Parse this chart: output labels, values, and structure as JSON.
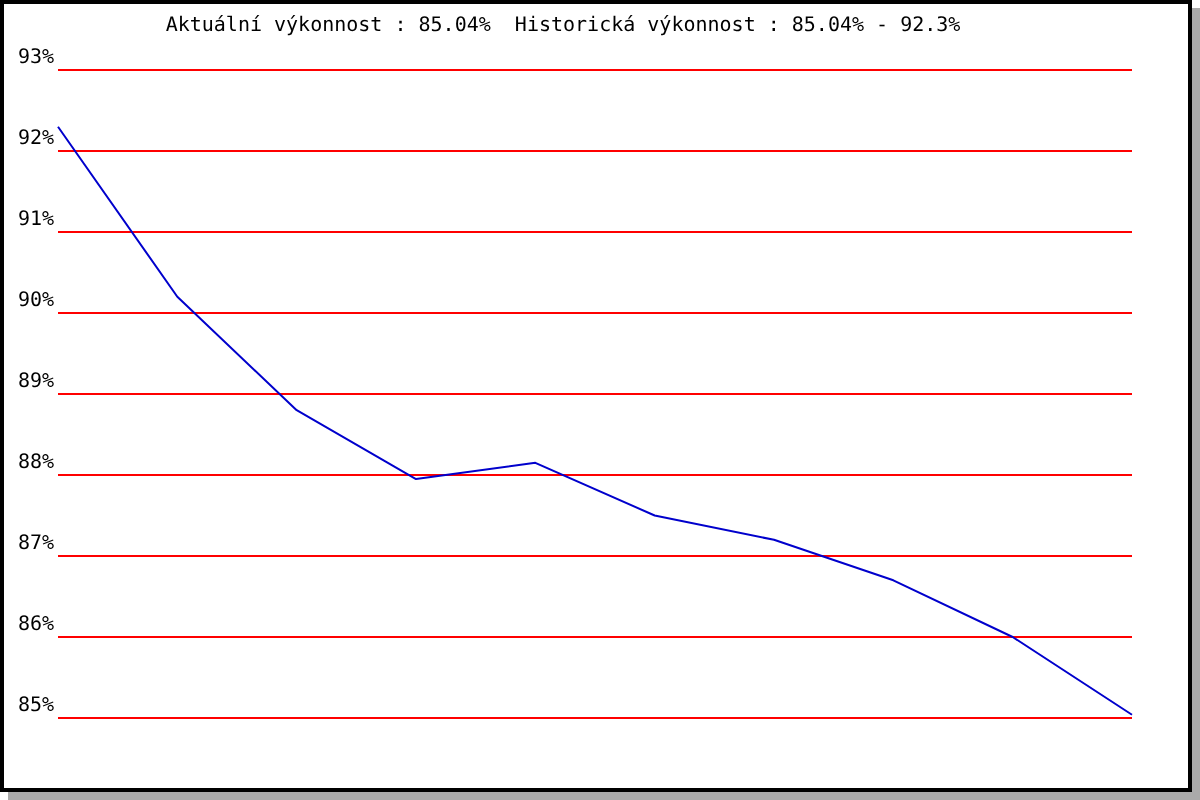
{
  "chart_data": {
    "type": "line",
    "title": "Aktuální výkonnost : 85.04%  Historická výkonnost : 85.04% - 92.3%",
    "categories": [
      null,
      null,
      null,
      null,
      null,
      null,
      null,
      null,
      null,
      null
    ],
    "series": [
      {
        "color": "#0000cc",
        "values": [
          92.3,
          90.2,
          88.8,
          87.95,
          88.15,
          87.5,
          87.2,
          86.7,
          86.0,
          85.04
        ]
      }
    ],
    "ylim": [
      85,
      93
    ],
    "yticks": [
      {
        "value": 85,
        "label": "85%"
      },
      {
        "value": 86,
        "label": "86%"
      },
      {
        "value": 87,
        "label": "87%"
      },
      {
        "value": 88,
        "label": "88%"
      },
      {
        "value": 89,
        "label": "89%"
      },
      {
        "value": 90,
        "label": "90%"
      },
      {
        "value": 91,
        "label": "91%"
      },
      {
        "value": 92,
        "label": "92%"
      },
      {
        "value": 93,
        "label": "93%"
      }
    ],
    "grid": "y",
    "tick_labels": "y",
    "marker": "none",
    "line_style": "solid",
    "legend": false
  }
}
